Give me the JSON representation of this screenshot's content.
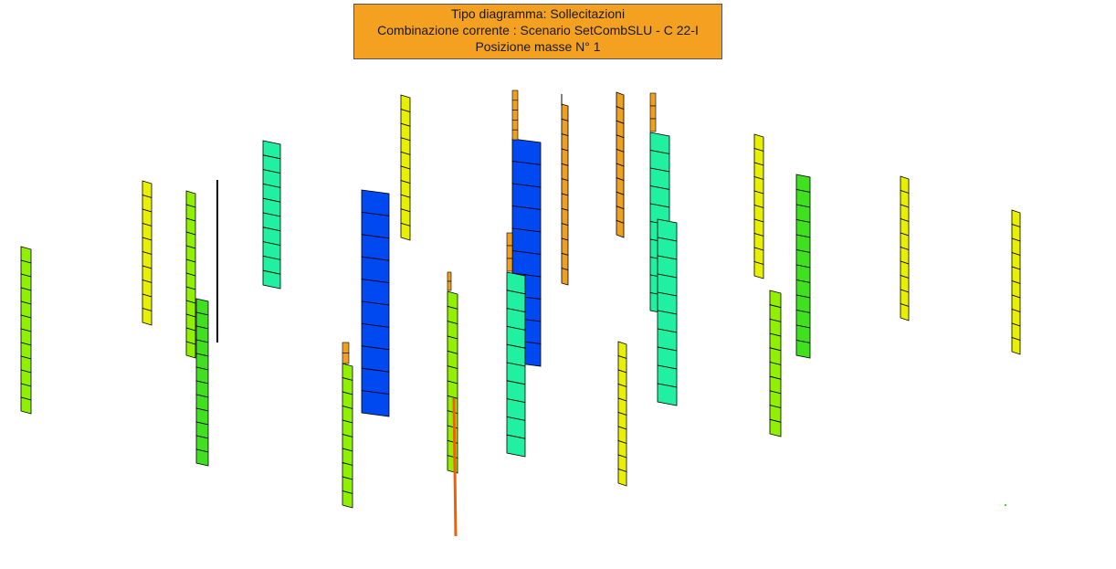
{
  "info_box": {
    "line1": "Tipo diagramma: Sollecitazioni",
    "line2": "Combinazione corrente : Scenario SetCombSLU - C 22-I",
    "line3": "Posizione masse N° 1"
  },
  "colors": {
    "info_box_background": "#f4a021",
    "element_outline": "#000000",
    "level_palette": [
      "#e8f000",
      "#90f000",
      "#40e020",
      "#20f0a0",
      "#0048f0",
      "#f0a020",
      "#f06000"
    ]
  }
}
